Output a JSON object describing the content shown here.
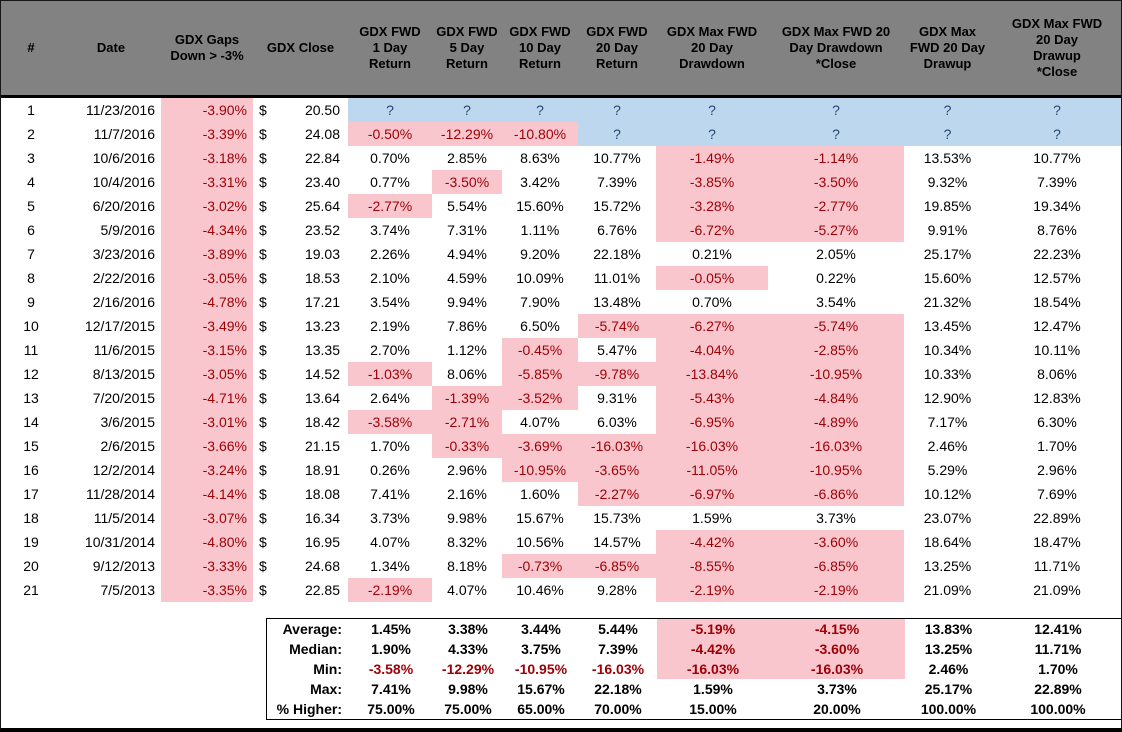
{
  "colors": {
    "headerBg": "#828282",
    "negBg": "#F9C6CD",
    "negText": "#9C0006",
    "unknownBg": "#BDD7EE",
    "unknownText": "#24466E"
  },
  "table": {
    "currency_symbol": "$",
    "unknown_marker": "?",
    "columns": [
      {
        "key": "num",
        "label": "#"
      },
      {
        "key": "date",
        "label": "Date"
      },
      {
        "key": "gap",
        "label": "GDX Gaps\nDown > -3%"
      },
      {
        "key": "close",
        "label": "GDX Close"
      },
      {
        "key": "fwd1",
        "label": "GDX FWD\n1 Day\nReturn"
      },
      {
        "key": "fwd5",
        "label": "GDX FWD\n5 Day\nReturn"
      },
      {
        "key": "fwd10",
        "label": "GDX FWD\n10 Day\nReturn"
      },
      {
        "key": "fwd20",
        "label": "GDX FWD\n20 Day\nReturn"
      },
      {
        "key": "dd",
        "label": "GDX Max FWD\n20 Day\nDrawdown"
      },
      {
        "key": "ddc",
        "label": "GDX Max FWD 20\nDay Drawdown\n*Close"
      },
      {
        "key": "du",
        "label": "GDX Max\nFWD 20 Day\nDrawup"
      },
      {
        "key": "duc",
        "label": "GDX Max FWD\n20 Day\nDrawup\n*Close"
      }
    ],
    "rows": [
      {
        "num": "1",
        "date": "11/23/2016",
        "gap": "-3.90%",
        "close": "20.50",
        "fwd1": "?",
        "fwd5": "?",
        "fwd10": "?",
        "fwd20": "?",
        "dd": "?",
        "ddc": "?",
        "du": "?",
        "duc": "?"
      },
      {
        "num": "2",
        "date": "11/7/2016",
        "gap": "-3.39%",
        "close": "24.08",
        "fwd1": "-0.50%",
        "fwd5": "-12.29%",
        "fwd10": "-10.80%",
        "fwd20": "?",
        "dd": "?",
        "ddc": "?",
        "du": "?",
        "duc": "?"
      },
      {
        "num": "3",
        "date": "10/6/2016",
        "gap": "-3.18%",
        "close": "22.84",
        "fwd1": "0.70%",
        "fwd5": "2.85%",
        "fwd10": "8.63%",
        "fwd20": "10.77%",
        "dd": "-1.49%",
        "ddc": "-1.14%",
        "du": "13.53%",
        "duc": "10.77%"
      },
      {
        "num": "4",
        "date": "10/4/2016",
        "gap": "-3.31%",
        "close": "23.40",
        "fwd1": "0.77%",
        "fwd5": "-3.50%",
        "fwd10": "3.42%",
        "fwd20": "7.39%",
        "dd": "-3.85%",
        "ddc": "-3.50%",
        "du": "9.32%",
        "duc": "7.39%"
      },
      {
        "num": "5",
        "date": "6/20/2016",
        "gap": "-3.02%",
        "close": "25.64",
        "fwd1": "-2.77%",
        "fwd5": "5.54%",
        "fwd10": "15.60%",
        "fwd20": "15.72%",
        "dd": "-3.28%",
        "ddc": "-2.77%",
        "du": "19.85%",
        "duc": "19.34%"
      },
      {
        "num": "6",
        "date": "5/9/2016",
        "gap": "-4.34%",
        "close": "23.52",
        "fwd1": "3.74%",
        "fwd5": "7.31%",
        "fwd10": "1.11%",
        "fwd20": "6.76%",
        "dd": "-6.72%",
        "ddc": "-5.27%",
        "du": "9.91%",
        "duc": "8.76%"
      },
      {
        "num": "7",
        "date": "3/23/2016",
        "gap": "-3.89%",
        "close": "19.03",
        "fwd1": "2.26%",
        "fwd5": "4.94%",
        "fwd10": "9.20%",
        "fwd20": "22.18%",
        "dd": "0.21%",
        "ddc": "2.05%",
        "du": "25.17%",
        "duc": "22.23%"
      },
      {
        "num": "8",
        "date": "2/22/2016",
        "gap": "-3.05%",
        "close": "18.53",
        "fwd1": "2.10%",
        "fwd5": "4.59%",
        "fwd10": "10.09%",
        "fwd20": "11.01%",
        "dd": "-0.05%",
        "ddc": "0.22%",
        "du": "15.60%",
        "duc": "12.57%"
      },
      {
        "num": "9",
        "date": "2/16/2016",
        "gap": "-4.78%",
        "close": "17.21",
        "fwd1": "3.54%",
        "fwd5": "9.94%",
        "fwd10": "7.90%",
        "fwd20": "13.48%",
        "dd": "0.70%",
        "ddc": "3.54%",
        "du": "21.32%",
        "duc": "18.54%"
      },
      {
        "num": "10",
        "date": "12/17/2015",
        "gap": "-3.49%",
        "close": "13.23",
        "fwd1": "2.19%",
        "fwd5": "7.86%",
        "fwd10": "6.50%",
        "fwd20": "-5.74%",
        "dd": "-6.27%",
        "ddc": "-5.74%",
        "du": "13.45%",
        "duc": "12.47%"
      },
      {
        "num": "11",
        "date": "11/6/2015",
        "gap": "-3.15%",
        "close": "13.35",
        "fwd1": "2.70%",
        "fwd5": "1.12%",
        "fwd10": "-0.45%",
        "fwd20": "5.47%",
        "dd": "-4.04%",
        "ddc": "-2.85%",
        "du": "10.34%",
        "duc": "10.11%"
      },
      {
        "num": "12",
        "date": "8/13/2015",
        "gap": "-3.05%",
        "close": "14.52",
        "fwd1": "-1.03%",
        "fwd5": "8.06%",
        "fwd10": "-5.85%",
        "fwd20": "-9.78%",
        "dd": "-13.84%",
        "ddc": "-10.95%",
        "du": "10.33%",
        "duc": "8.06%"
      },
      {
        "num": "13",
        "date": "7/20/2015",
        "gap": "-4.71%",
        "close": "13.64",
        "fwd1": "2.64%",
        "fwd5": "-1.39%",
        "fwd10": "-3.52%",
        "fwd20": "9.31%",
        "dd": "-5.43%",
        "ddc": "-4.84%",
        "du": "12.90%",
        "duc": "12.83%"
      },
      {
        "num": "14",
        "date": "3/6/2015",
        "gap": "-3.01%",
        "close": "18.42",
        "fwd1": "-3.58%",
        "fwd5": "-2.71%",
        "fwd10": "4.07%",
        "fwd20": "6.03%",
        "dd": "-6.95%",
        "ddc": "-4.89%",
        "du": "7.17%",
        "duc": "6.30%"
      },
      {
        "num": "15",
        "date": "2/6/2015",
        "gap": "-3.66%",
        "close": "21.15",
        "fwd1": "1.70%",
        "fwd5": "-0.33%",
        "fwd10": "-3.69%",
        "fwd20": "-16.03%",
        "dd": "-16.03%",
        "ddc": "-16.03%",
        "du": "2.46%",
        "duc": "1.70%"
      },
      {
        "num": "16",
        "date": "12/2/2014",
        "gap": "-3.24%",
        "close": "18.91",
        "fwd1": "0.26%",
        "fwd5": "2.96%",
        "fwd10": "-10.95%",
        "fwd20": "-3.65%",
        "dd": "-11.05%",
        "ddc": "-10.95%",
        "du": "5.29%",
        "duc": "2.96%"
      },
      {
        "num": "17",
        "date": "11/28/2014",
        "gap": "-4.14%",
        "close": "18.08",
        "fwd1": "7.41%",
        "fwd5": "2.16%",
        "fwd10": "1.60%",
        "fwd20": "-2.27%",
        "dd": "-6.97%",
        "ddc": "-6.86%",
        "du": "10.12%",
        "duc": "7.69%"
      },
      {
        "num": "18",
        "date": "11/5/2014",
        "gap": "-3.07%",
        "close": "16.34",
        "fwd1": "3.73%",
        "fwd5": "9.98%",
        "fwd10": "15.67%",
        "fwd20": "15.73%",
        "dd": "1.59%",
        "ddc": "3.73%",
        "du": "23.07%",
        "duc": "22.89%"
      },
      {
        "num": "19",
        "date": "10/31/2014",
        "gap": "-4.80%",
        "close": "16.95",
        "fwd1": "4.07%",
        "fwd5": "8.32%",
        "fwd10": "10.56%",
        "fwd20": "14.57%",
        "dd": "-4.42%",
        "ddc": "-3.60%",
        "du": "18.64%",
        "duc": "18.47%"
      },
      {
        "num": "20",
        "date": "9/12/2013",
        "gap": "-3.33%",
        "close": "24.68",
        "fwd1": "1.34%",
        "fwd5": "8.18%",
        "fwd10": "-0.73%",
        "fwd20": "-6.85%",
        "dd": "-8.55%",
        "ddc": "-6.85%",
        "du": "13.25%",
        "duc": "11.71%"
      },
      {
        "num": "21",
        "date": "7/5/2013",
        "gap": "-3.35%",
        "close": "22.85",
        "fwd1": "-2.19%",
        "fwd5": "4.07%",
        "fwd10": "10.46%",
        "fwd20": "9.28%",
        "dd": "-2.19%",
        "ddc": "-2.19%",
        "du": "21.09%",
        "duc": "21.09%"
      }
    ],
    "summary": [
      {
        "label": "Average:",
        "fwd1": "1.45%",
        "fwd5": "3.38%",
        "fwd10": "3.44%",
        "fwd20": "5.44%",
        "dd": "-5.19%",
        "ddc": "-4.15%",
        "du": "13.83%",
        "duc": "12.41%"
      },
      {
        "label": "Median:",
        "fwd1": "1.90%",
        "fwd5": "4.33%",
        "fwd10": "3.75%",
        "fwd20": "7.39%",
        "dd": "-4.42%",
        "ddc": "-3.60%",
        "du": "13.25%",
        "duc": "11.71%"
      },
      {
        "label": "Min:",
        "fwd1": "-3.58%",
        "fwd5": "-12.29%",
        "fwd10": "-10.95%",
        "fwd20": "-16.03%",
        "dd": "-16.03%",
        "ddc": "-16.03%",
        "du": "2.46%",
        "duc": "1.70%"
      },
      {
        "label": "Max:",
        "fwd1": "7.41%",
        "fwd5": "9.98%",
        "fwd10": "15.67%",
        "fwd20": "22.18%",
        "dd": "1.59%",
        "ddc": "3.73%",
        "du": "25.17%",
        "duc": "22.89%"
      },
      {
        "label": "% Higher:",
        "fwd1": "75.00%",
        "fwd5": "75.00%",
        "fwd10": "65.00%",
        "fwd20": "70.00%",
        "dd": "15.00%",
        "ddc": "20.00%",
        "du": "100.00%",
        "duc": "100.00%"
      }
    ]
  }
}
